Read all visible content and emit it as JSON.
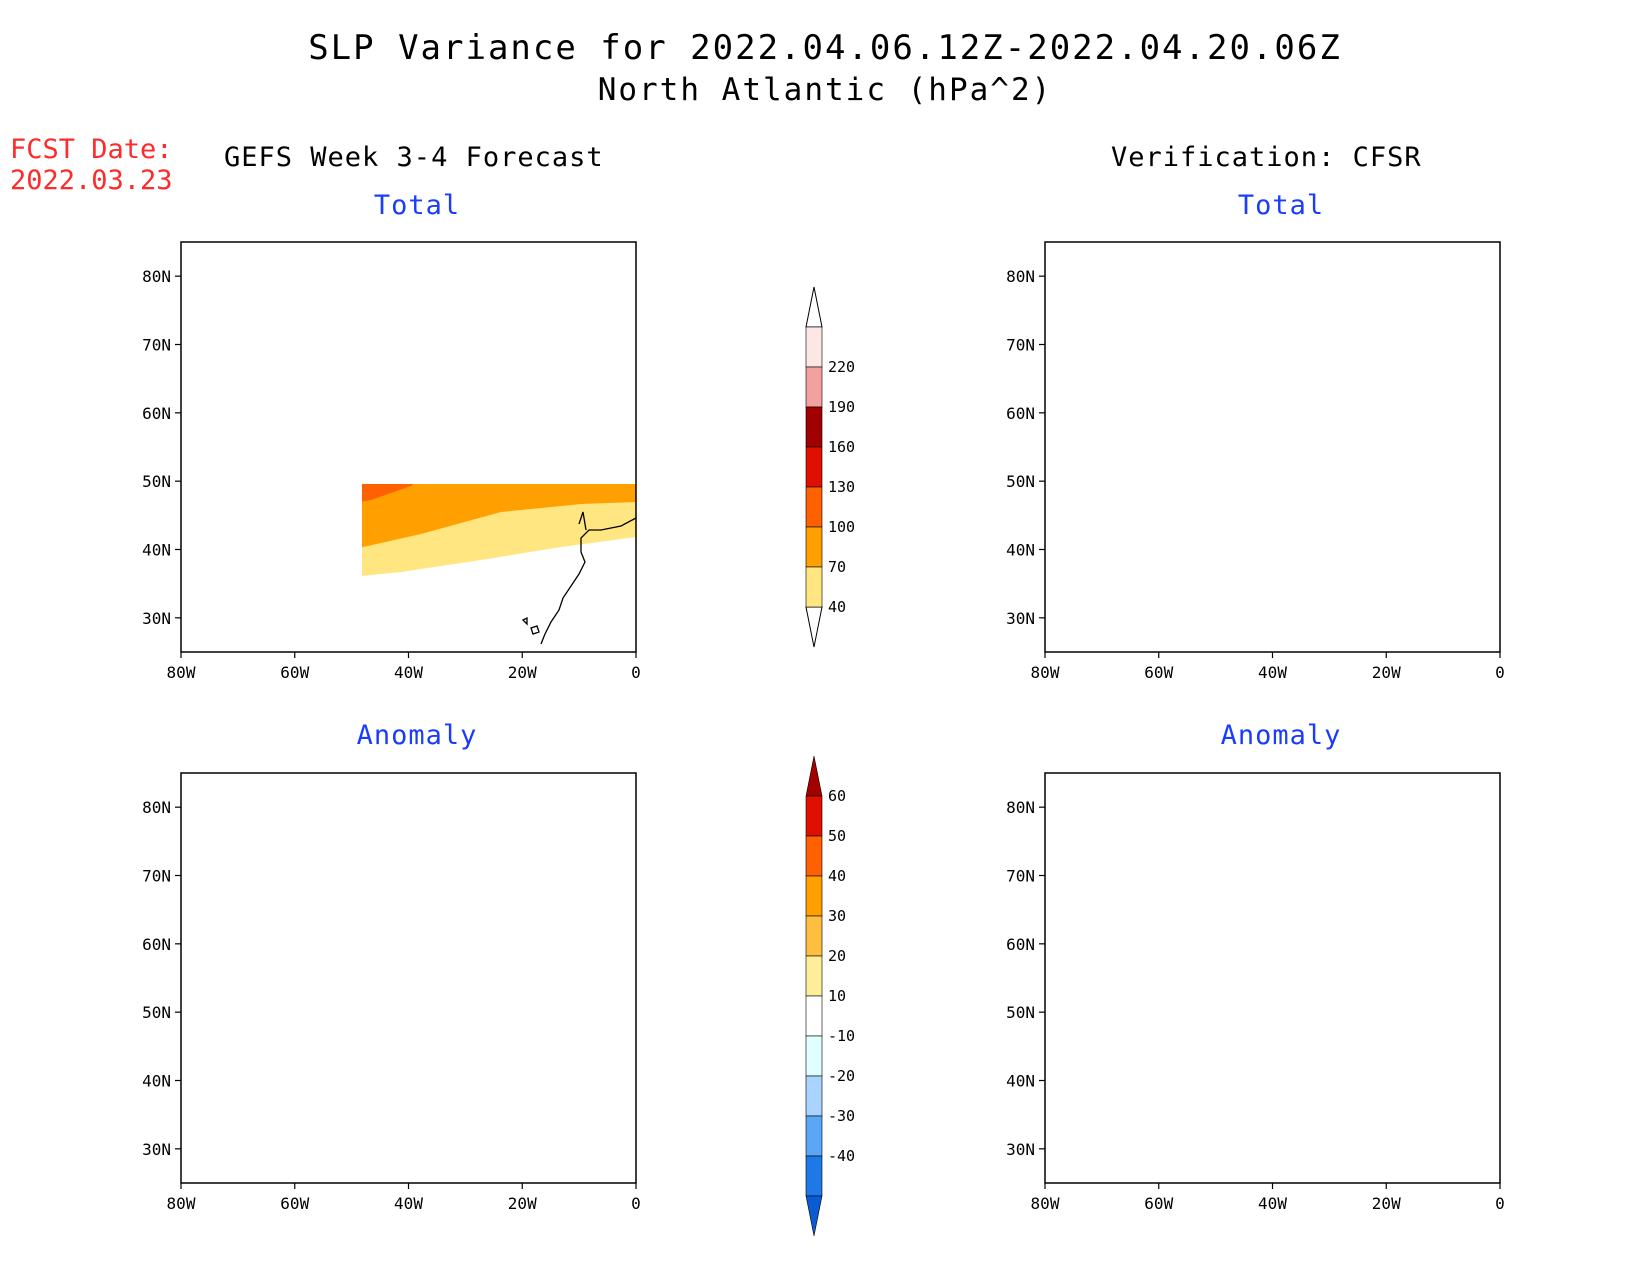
{
  "title_line1": "SLP Variance for 2022.04.06.12Z-2022.04.20.06Z",
  "title_line2": "North Atlantic (hPa^2)",
  "fcst_label": "FCST Date:",
  "fcst_date": "2022.03.23",
  "left_column_title": "GEFS Week 3-4 Forecast",
  "right_column_title": "Verification: CFSR",
  "panel_titles": {
    "forecast_total": "Total",
    "verification_total": "Total",
    "forecast_anomaly": "Anomaly",
    "verification_anomaly": "Anomaly"
  },
  "axes": {
    "lat_labels": [
      "80N",
      "70N",
      "60N",
      "50N",
      "40N",
      "30N"
    ],
    "lon_labels": [
      "80W",
      "60W",
      "40W",
      "20W",
      "0"
    ],
    "lat_values": [
      80,
      70,
      60,
      50,
      40,
      30
    ],
    "lon_values": [
      -80,
      -60,
      -40,
      -20,
      0
    ]
  },
  "total_colorbar": {
    "levels": [
      "40",
      "70",
      "100",
      "130",
      "160",
      "190",
      "220"
    ],
    "colors": [
      "#ffe680",
      "#ffa000",
      "#ff6000",
      "#e01000",
      "#a00000",
      "#f2a0a0",
      "#fde6e6"
    ]
  },
  "anomaly_colorbar": {
    "levels": [
      "60",
      "50",
      "40",
      "30",
      "20",
      "10",
      "-10",
      "-20",
      "-30",
      "-40"
    ],
    "colors": [
      "#a50000",
      "#e01000",
      "#ff6000",
      "#ffa000",
      "#ffbe40",
      "#ffee99",
      "#ffffff",
      "#e0ffff",
      "#a8d4ff",
      "#5aa8f5",
      "#1e78e6",
      "#0a5ad2"
    ]
  }
}
